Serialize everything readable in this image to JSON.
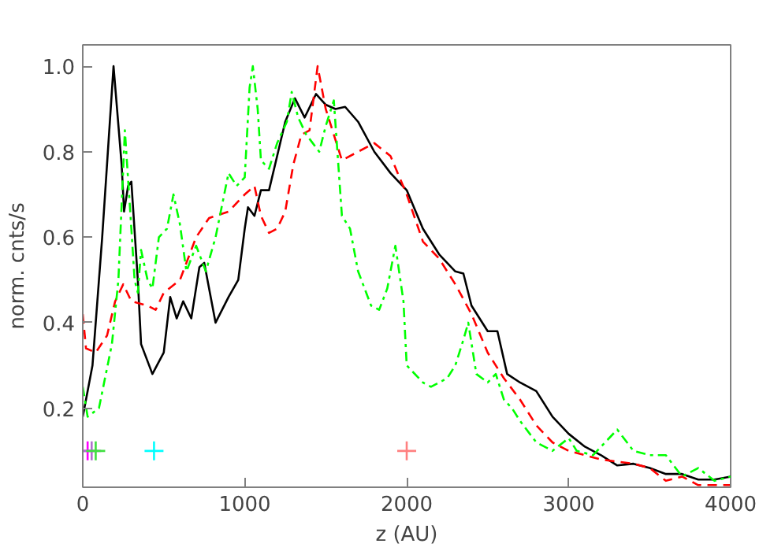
{
  "chart_data": {
    "type": "line",
    "xlabel": "z (AU)",
    "ylabel": "norm. cnts/s",
    "xlim": [
      0,
      4000
    ],
    "ylim": [
      0.015,
      1.05
    ],
    "xticks": [
      0,
      1000,
      2000,
      3000,
      4000
    ],
    "yticks": [
      0.2,
      0.4,
      0.6,
      0.8,
      {
        "value": 1.0,
        "label": "1.0"
      }
    ],
    "grid": false,
    "series": [
      {
        "color": "#000000",
        "line_style": "solid",
        "x": [
          0,
          20,
          60,
          120,
          190,
          240,
          255,
          280,
          300,
          340,
          360,
          430,
          500,
          540,
          580,
          620,
          670,
          720,
          750,
          820,
          900,
          960,
          1000,
          1020,
          1060,
          1100,
          1150,
          1200,
          1250,
          1310,
          1370,
          1440,
          1500,
          1560,
          1620,
          1700,
          1800,
          1900,
          2000,
          2100,
          2200,
          2300,
          2350,
          2400,
          2500,
          2560,
          2620,
          2700,
          2800,
          2900,
          3000,
          3100,
          3200,
          3300,
          3400,
          3500,
          3600,
          3700,
          3800,
          3900,
          4000
        ],
        "values": [
          0.18,
          0.22,
          0.3,
          0.6,
          1.0,
          0.77,
          0.66,
          0.72,
          0.73,
          0.5,
          0.35,
          0.28,
          0.33,
          0.46,
          0.41,
          0.45,
          0.41,
          0.53,
          0.54,
          0.4,
          0.46,
          0.5,
          0.62,
          0.67,
          0.65,
          0.71,
          0.71,
          0.79,
          0.87,
          0.925,
          0.88,
          0.935,
          0.91,
          0.9,
          0.905,
          0.87,
          0.8,
          0.75,
          0.71,
          0.62,
          0.56,
          0.52,
          0.515,
          0.44,
          0.38,
          0.38,
          0.28,
          0.26,
          0.24,
          0.18,
          0.14,
          0.11,
          0.09,
          0.066,
          0.07,
          0.06,
          0.046,
          0.046,
          0.033,
          0.033,
          0.04
        ]
      },
      {
        "color": "#ff0000",
        "line_style": "dashed",
        "x": [
          0,
          20,
          80,
          150,
          200,
          250,
          300,
          400,
          450,
          500,
          600,
          700,
          780,
          900,
          1000,
          1060,
          1100,
          1150,
          1200,
          1250,
          1300,
          1350,
          1400,
          1450,
          1500,
          1600,
          1700,
          1800,
          1900,
          2000,
          2100,
          2200,
          2300,
          2400,
          2500,
          2600,
          2700,
          2800,
          2900,
          3000,
          3200,
          3400,
          3500,
          3600,
          3700,
          3800,
          4000
        ],
        "values": [
          0.42,
          0.34,
          0.33,
          0.37,
          0.45,
          0.49,
          0.45,
          0.44,
          0.43,
          0.47,
          0.5,
          0.6,
          0.645,
          0.66,
          0.7,
          0.72,
          0.65,
          0.61,
          0.62,
          0.66,
          0.77,
          0.84,
          0.85,
          1.0,
          0.9,
          0.78,
          0.8,
          0.82,
          0.79,
          0.7,
          0.59,
          0.55,
          0.49,
          0.42,
          0.33,
          0.27,
          0.22,
          0.16,
          0.12,
          0.1,
          0.08,
          0.07,
          0.06,
          0.03,
          0.04,
          0.02,
          0.02
        ]
      },
      {
        "color": "#00ff00",
        "line_style": "dashdot",
        "x": [
          0,
          30,
          100,
          180,
          220,
          260,
          300,
          320,
          340,
          360,
          400,
          430,
          470,
          520,
          560,
          600,
          640,
          700,
          760,
          820,
          900,
          950,
          1000,
          1030,
          1050,
          1080,
          1100,
          1150,
          1200,
          1260,
          1290,
          1330,
          1380,
          1420,
          1460,
          1500,
          1550,
          1600,
          1650,
          1700,
          1780,
          1830,
          1880,
          1930,
          1980,
          2000,
          2100,
          2150,
          2250,
          2300,
          2350,
          2380,
          2430,
          2500,
          2550,
          2600,
          2650,
          2700,
          2800,
          2900,
          3000,
          3050,
          3150,
          3300,
          3400,
          3500,
          3600,
          3700,
          3800,
          3900,
          4000
        ],
        "values": [
          0.25,
          0.18,
          0.2,
          0.35,
          0.5,
          0.85,
          0.62,
          0.5,
          0.47,
          0.57,
          0.5,
          0.48,
          0.6,
          0.62,
          0.7,
          0.63,
          0.52,
          0.58,
          0.52,
          0.6,
          0.75,
          0.72,
          0.74,
          0.95,
          1.0,
          0.9,
          0.78,
          0.76,
          0.82,
          0.87,
          0.94,
          0.88,
          0.84,
          0.82,
          0.8,
          0.86,
          0.92,
          0.65,
          0.62,
          0.52,
          0.44,
          0.43,
          0.48,
          0.58,
          0.45,
          0.3,
          0.26,
          0.25,
          0.27,
          0.3,
          0.36,
          0.4,
          0.28,
          0.26,
          0.28,
          0.22,
          0.2,
          0.17,
          0.12,
          0.1,
          0.13,
          0.1,
          0.09,
          0.15,
          0.1,
          0.09,
          0.09,
          0.04,
          0.06,
          0.03,
          0.04
        ]
      },
      {
        "type": "scatter",
        "marker": "cross",
        "x": [
          30,
          55,
          80,
          440,
          2000
        ],
        "values": [
          0.1,
          0.1,
          0.1,
          0.1,
          0.1
        ],
        "colors": [
          "#ff00ff",
          "#b070d0",
          "#40e040",
          "#00ffff",
          "#ff8080"
        ]
      }
    ]
  }
}
